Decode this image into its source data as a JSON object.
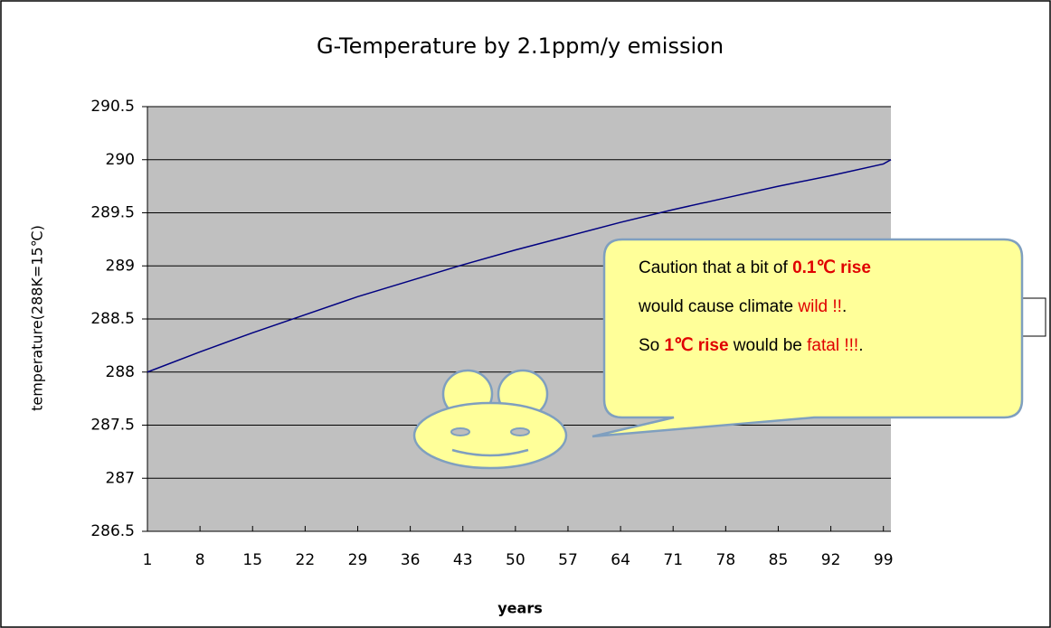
{
  "chart_data": {
    "type": "line",
    "title": "G-Temperature by 2.1ppm/y emission",
    "xlabel": "years",
    "ylabel": "temperature(288K=15℃)",
    "x": [
      1,
      8,
      15,
      22,
      29,
      36,
      43,
      50,
      57,
      64,
      71,
      78,
      85,
      92,
      99,
      100
    ],
    "series": [
      {
        "color": "#000080",
        "values": [
          288.0,
          288.19,
          288.37,
          288.54,
          288.71,
          288.86,
          289.01,
          289.15,
          289.28,
          289.41,
          289.53,
          289.64,
          289.75,
          289.85,
          289.96,
          290.0
        ]
      }
    ],
    "xlim": [
      1,
      100
    ],
    "xticks": [
      1,
      8,
      15,
      22,
      29,
      36,
      43,
      50,
      57,
      64,
      71,
      78,
      85,
      92,
      99
    ],
    "ylim": [
      286.5,
      290.5
    ],
    "yticks": [
      286.5,
      287,
      287.5,
      288,
      288.5,
      289,
      289.5,
      290,
      290.5
    ],
    "grid": true,
    "annotation": {
      "lines": [
        [
          {
            "text": "Caution that a bit of "
          },
          {
            "text": "0.1℃ rise",
            "emphasis": "bold-red"
          }
        ],
        [
          {
            "text": "would cause climate "
          },
          {
            "text": "wild !!",
            "emphasis": "red"
          },
          {
            "text": "."
          }
        ],
        [
          {
            "text": "So "
          },
          {
            "text": "1℃ rise",
            "emphasis": "bold-red"
          },
          {
            "text": " would be "
          },
          {
            "text": "fatal !!!",
            "emphasis": "red"
          },
          {
            "text": "."
          }
        ]
      ]
    }
  }
}
